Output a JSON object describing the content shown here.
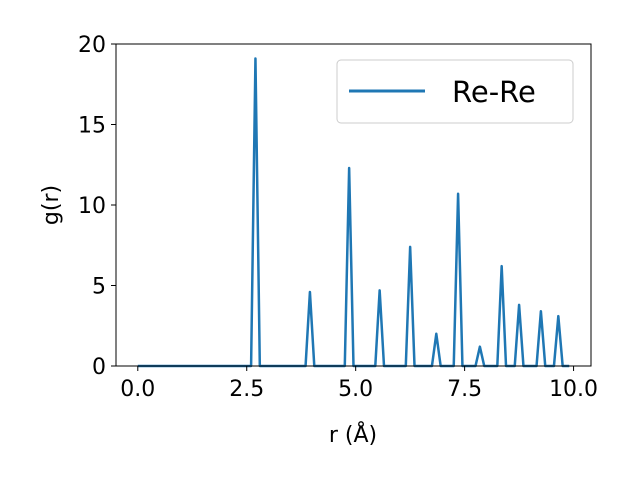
{
  "chart_data": {
    "type": "line",
    "title": "",
    "xlabel": "r (Å)",
    "ylabel": "g(r)",
    "xlim": [
      -0.5,
      10.4
    ],
    "ylim": [
      0,
      20
    ],
    "xticks": [
      0.0,
      2.5,
      5.0,
      7.5,
      10.0
    ],
    "xtick_labels": [
      "0.0",
      "2.5",
      "5.0",
      "7.5",
      "10.0"
    ],
    "yticks": [
      0,
      5,
      10,
      15,
      20
    ],
    "ytick_labels": [
      "0",
      "5",
      "10",
      "15",
      "20"
    ],
    "grid": false,
    "legend_position": "top-right",
    "series": [
      {
        "name": "Re-Re",
        "color": "#1f77b4",
        "x": [
          0.0,
          2.6,
          2.7,
          2.8,
          3.85,
          3.95,
          4.05,
          4.75,
          4.85,
          4.95,
          5.45,
          5.55,
          5.65,
          6.15,
          6.25,
          6.35,
          6.75,
          6.85,
          6.95,
          7.25,
          7.35,
          7.45,
          7.75,
          7.85,
          7.95,
          8.25,
          8.35,
          8.45,
          8.65,
          8.75,
          8.85,
          9.15,
          9.25,
          9.35,
          9.55,
          9.65,
          9.75,
          9.9
        ],
        "y": [
          0,
          0,
          19.1,
          0,
          0,
          4.6,
          0,
          0,
          12.3,
          0,
          0,
          4.7,
          0,
          0,
          7.4,
          0,
          0,
          2.0,
          0,
          0,
          10.7,
          0,
          0,
          1.2,
          0,
          0,
          6.2,
          0,
          0,
          3.8,
          0,
          0,
          3.4,
          0,
          0,
          3.1,
          0,
          0
        ]
      }
    ]
  }
}
